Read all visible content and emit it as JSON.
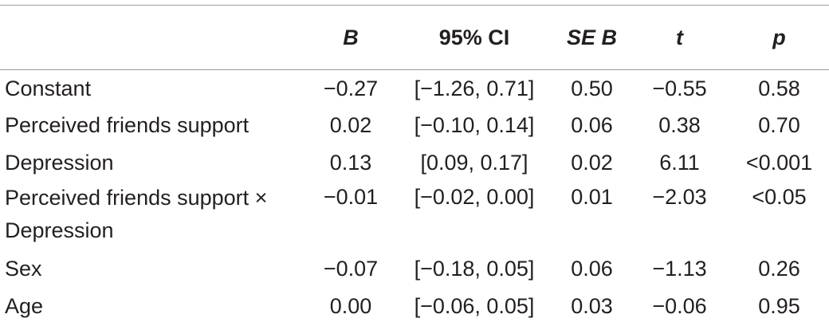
{
  "table": {
    "headers": [
      "",
      "B",
      "95% CI",
      "SE B",
      "t",
      "p"
    ],
    "rows": [
      {
        "label": "Constant",
        "b": "−0.27",
        "ci": "[−1.26, 0.71]",
        "se": "0.50",
        "t": "−0.55",
        "p": "0.58"
      },
      {
        "label": "Perceived friends support",
        "b": "0.02",
        "ci": "[−0.10, 0.14]",
        "se": "0.06",
        "t": "0.38",
        "p": "0.70"
      },
      {
        "label": "Depression",
        "b": "0.13",
        "ci": "[0.09, 0.17]",
        "se": "0.02",
        "t": "6.11",
        "p": "<0.001"
      },
      {
        "label": "Perceived friends support × Depression",
        "b": "−0.01",
        "ci": "[−0.02, 0.00]",
        "se": "0.01",
        "t": "−2.03",
        "p": "<0.05"
      },
      {
        "label": "Sex",
        "b": "−0.07",
        "ci": "[−0.18, 0.05]",
        "se": "0.06",
        "t": "−1.13",
        "p": "0.26"
      },
      {
        "label": "Age",
        "b": "0.00",
        "ci": "[−0.06, 0.05]",
        "se": "0.03",
        "t": "−0.06",
        "p": "0.95"
      }
    ]
  }
}
